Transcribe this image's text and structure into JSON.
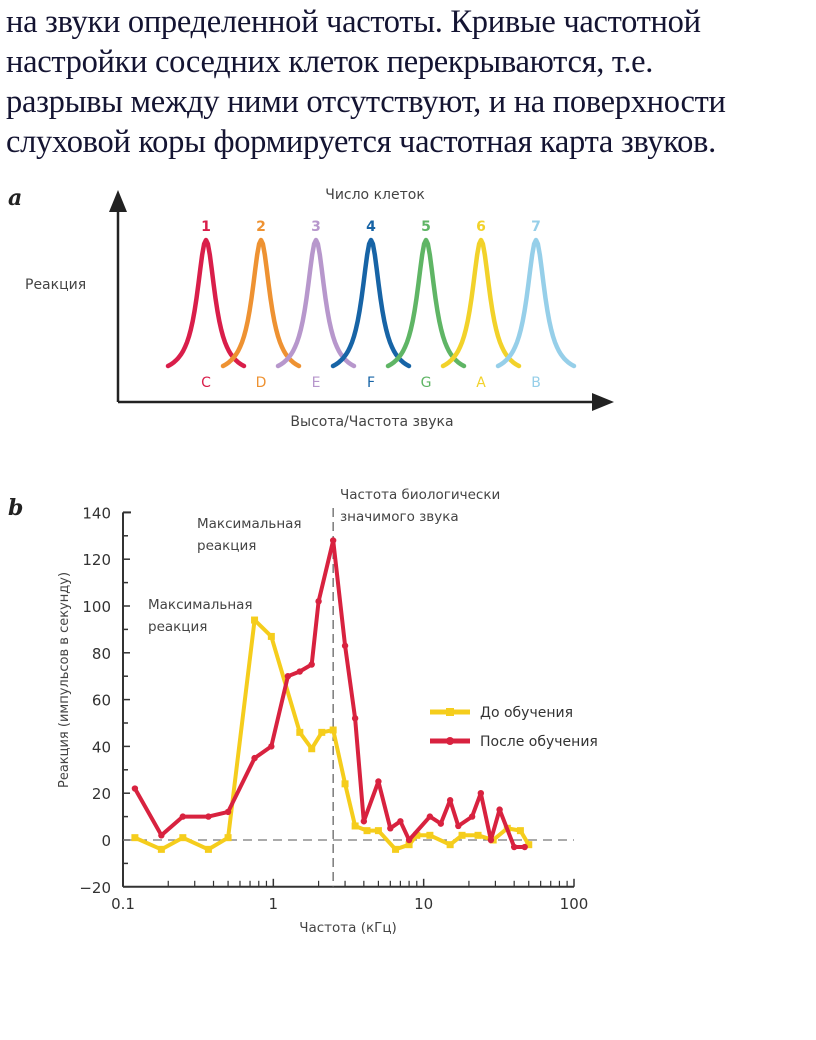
{
  "text": {
    "lines": [
      "на звуки определенной частоты. Кривые частотной",
      "настройки соседних клеток перекрываются, т.е.",
      "разрывы между ними отсутствуют, и на поверхности",
      "слуховой коры формируется частотная карта звуков."
    ]
  },
  "chart_data": [
    {
      "type": "line",
      "panel_label": "a",
      "title": "Число клеток",
      "xlabel": "Высота/Частота звука",
      "ylabel": "Реакция",
      "grid": false,
      "series": [
        {
          "name": "1",
          "note": "C",
          "color": "#d91e4a"
        },
        {
          "name": "2",
          "note": "D",
          "color": "#ee9232"
        },
        {
          "name": "3",
          "note": "E",
          "color": "#b797cc"
        },
        {
          "name": "4",
          "note": "F",
          "color": "#1764a6"
        },
        {
          "name": "5",
          "note": "G",
          "color": "#5fb565"
        },
        {
          "name": "6",
          "note": "A",
          "color": "#f2d22a"
        },
        {
          "name": "7",
          "note": "B",
          "color": "#96cfe9"
        }
      ]
    },
    {
      "type": "line",
      "panel_label": "b",
      "xlabel": "Частота (кГц)",
      "ylabel": "Реакция (импульсов в секунду)",
      "xscale": "log",
      "xlim": [
        0.1,
        100
      ],
      "ylim": [
        -20,
        140
      ],
      "xticks": [
        "0.1",
        "1",
        "10",
        "100"
      ],
      "yticks": [
        "140",
        "120",
        "100",
        "80",
        "60",
        "40",
        "20",
        "0",
        "−20"
      ],
      "grid": false,
      "legend": "right",
      "reference_line_x": 2.5,
      "annotations": [
        {
          "text_lines": [
            "Частота биологически",
            "значимого звука"
          ]
        },
        {
          "text_lines": [
            "Максимальная",
            "реакция"
          ],
          "series": "После обучения"
        },
        {
          "text_lines": [
            "Максимальная",
            "реакция"
          ],
          "series": "До обучения"
        }
      ],
      "series": [
        {
          "name": "До обучения",
          "color": "#f5cd1c",
          "x": [
            0.12,
            0.18,
            0.25,
            0.37,
            0.5,
            0.75,
            0.97,
            1.5,
            1.8,
            2.1,
            2.5,
            3.0,
            3.5,
            4.2,
            5.0,
            6.5,
            8.0,
            9.0,
            11,
            15,
            18,
            23,
            29,
            36,
            44,
            50
          ],
          "y": [
            1,
            -4,
            1,
            -4,
            1,
            94,
            87,
            46,
            39,
            46,
            47,
            24,
            6,
            4,
            4,
            -4,
            -2,
            2,
            2,
            -2,
            2,
            2,
            0,
            5,
            4,
            -2
          ]
        },
        {
          "name": "После обучения",
          "color": "#d8223f",
          "x": [
            0.12,
            0.18,
            0.25,
            0.37,
            0.5,
            0.75,
            0.97,
            1.25,
            1.5,
            1.8,
            2.0,
            2.5,
            3.0,
            3.5,
            4.0,
            5.0,
            6.0,
            7.0,
            8.0,
            11,
            13,
            15,
            17,
            21,
            24,
            28,
            32,
            40,
            47
          ],
          "y": [
            22,
            2,
            10,
            10,
            12,
            35,
            40,
            70,
            72,
            75,
            102,
            128,
            83,
            52,
            8,
            25,
            5,
            8,
            0,
            10,
            7,
            17,
            6,
            10,
            20,
            0,
            13,
            -3,
            -3
          ]
        }
      ]
    }
  ]
}
